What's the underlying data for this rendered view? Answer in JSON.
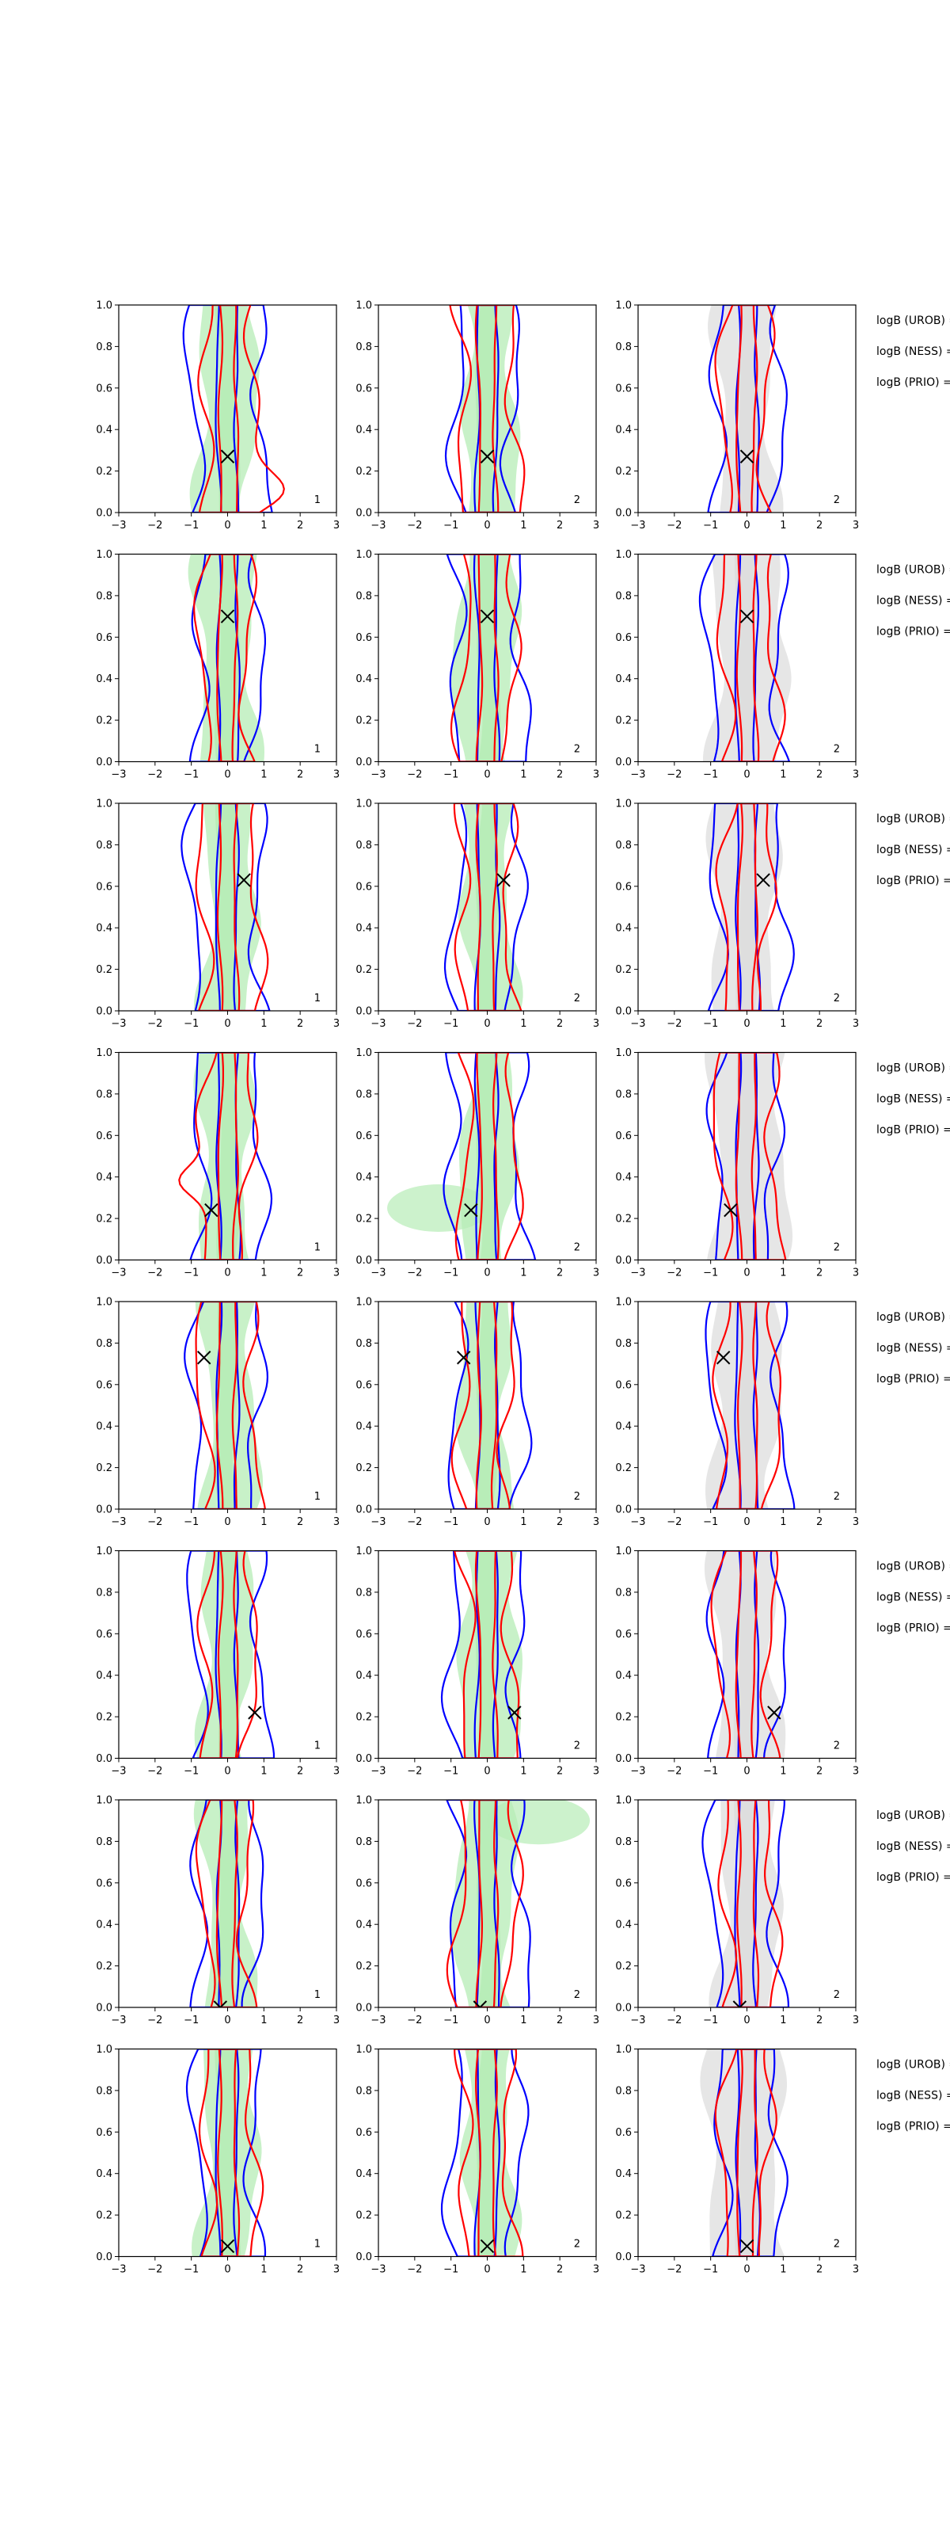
{
  "chart_data": {
    "type": "contour",
    "layout": {
      "rows": 8,
      "cols": 3
    },
    "x_axis": {
      "xlim": [
        -3,
        3
      ],
      "ticks": [
        "−3",
        "−2",
        "−1",
        "0",
        "1",
        "2",
        "3"
      ]
    },
    "y_axis": {
      "ylim": [
        0.0,
        1.0
      ],
      "ticks": [
        "0.0",
        "0.2",
        "0.4",
        "0.6",
        "0.8",
        "1.0"
      ]
    },
    "colors": {
      "blue_contour": "#0000ff",
      "red_contour": "#ff0000",
      "green_fill": "#b6ecb6",
      "gray_fill": "#dddddd",
      "marker": "#000000"
    },
    "column_fills": [
      "green",
      "green",
      "gray"
    ],
    "corner_labels": [
      "1",
      "2",
      "2"
    ],
    "side_labels": [
      "logB (UROB) =",
      "logB (NESS) =",
      "logB (PRIO) ="
    ],
    "rows": [
      {
        "marker": [
          0.0,
          0.27
        ]
      },
      {
        "marker": [
          0.0,
          0.7
        ]
      },
      {
        "marker": [
          0.45,
          0.63
        ]
      },
      {
        "marker": [
          -0.45,
          0.24
        ]
      },
      {
        "marker": [
          -0.65,
          0.73
        ]
      },
      {
        "marker": [
          0.75,
          0.22
        ]
      },
      {
        "marker": [
          -0.2,
          0.0
        ]
      },
      {
        "marker": [
          0.0,
          0.05
        ]
      }
    ]
  }
}
